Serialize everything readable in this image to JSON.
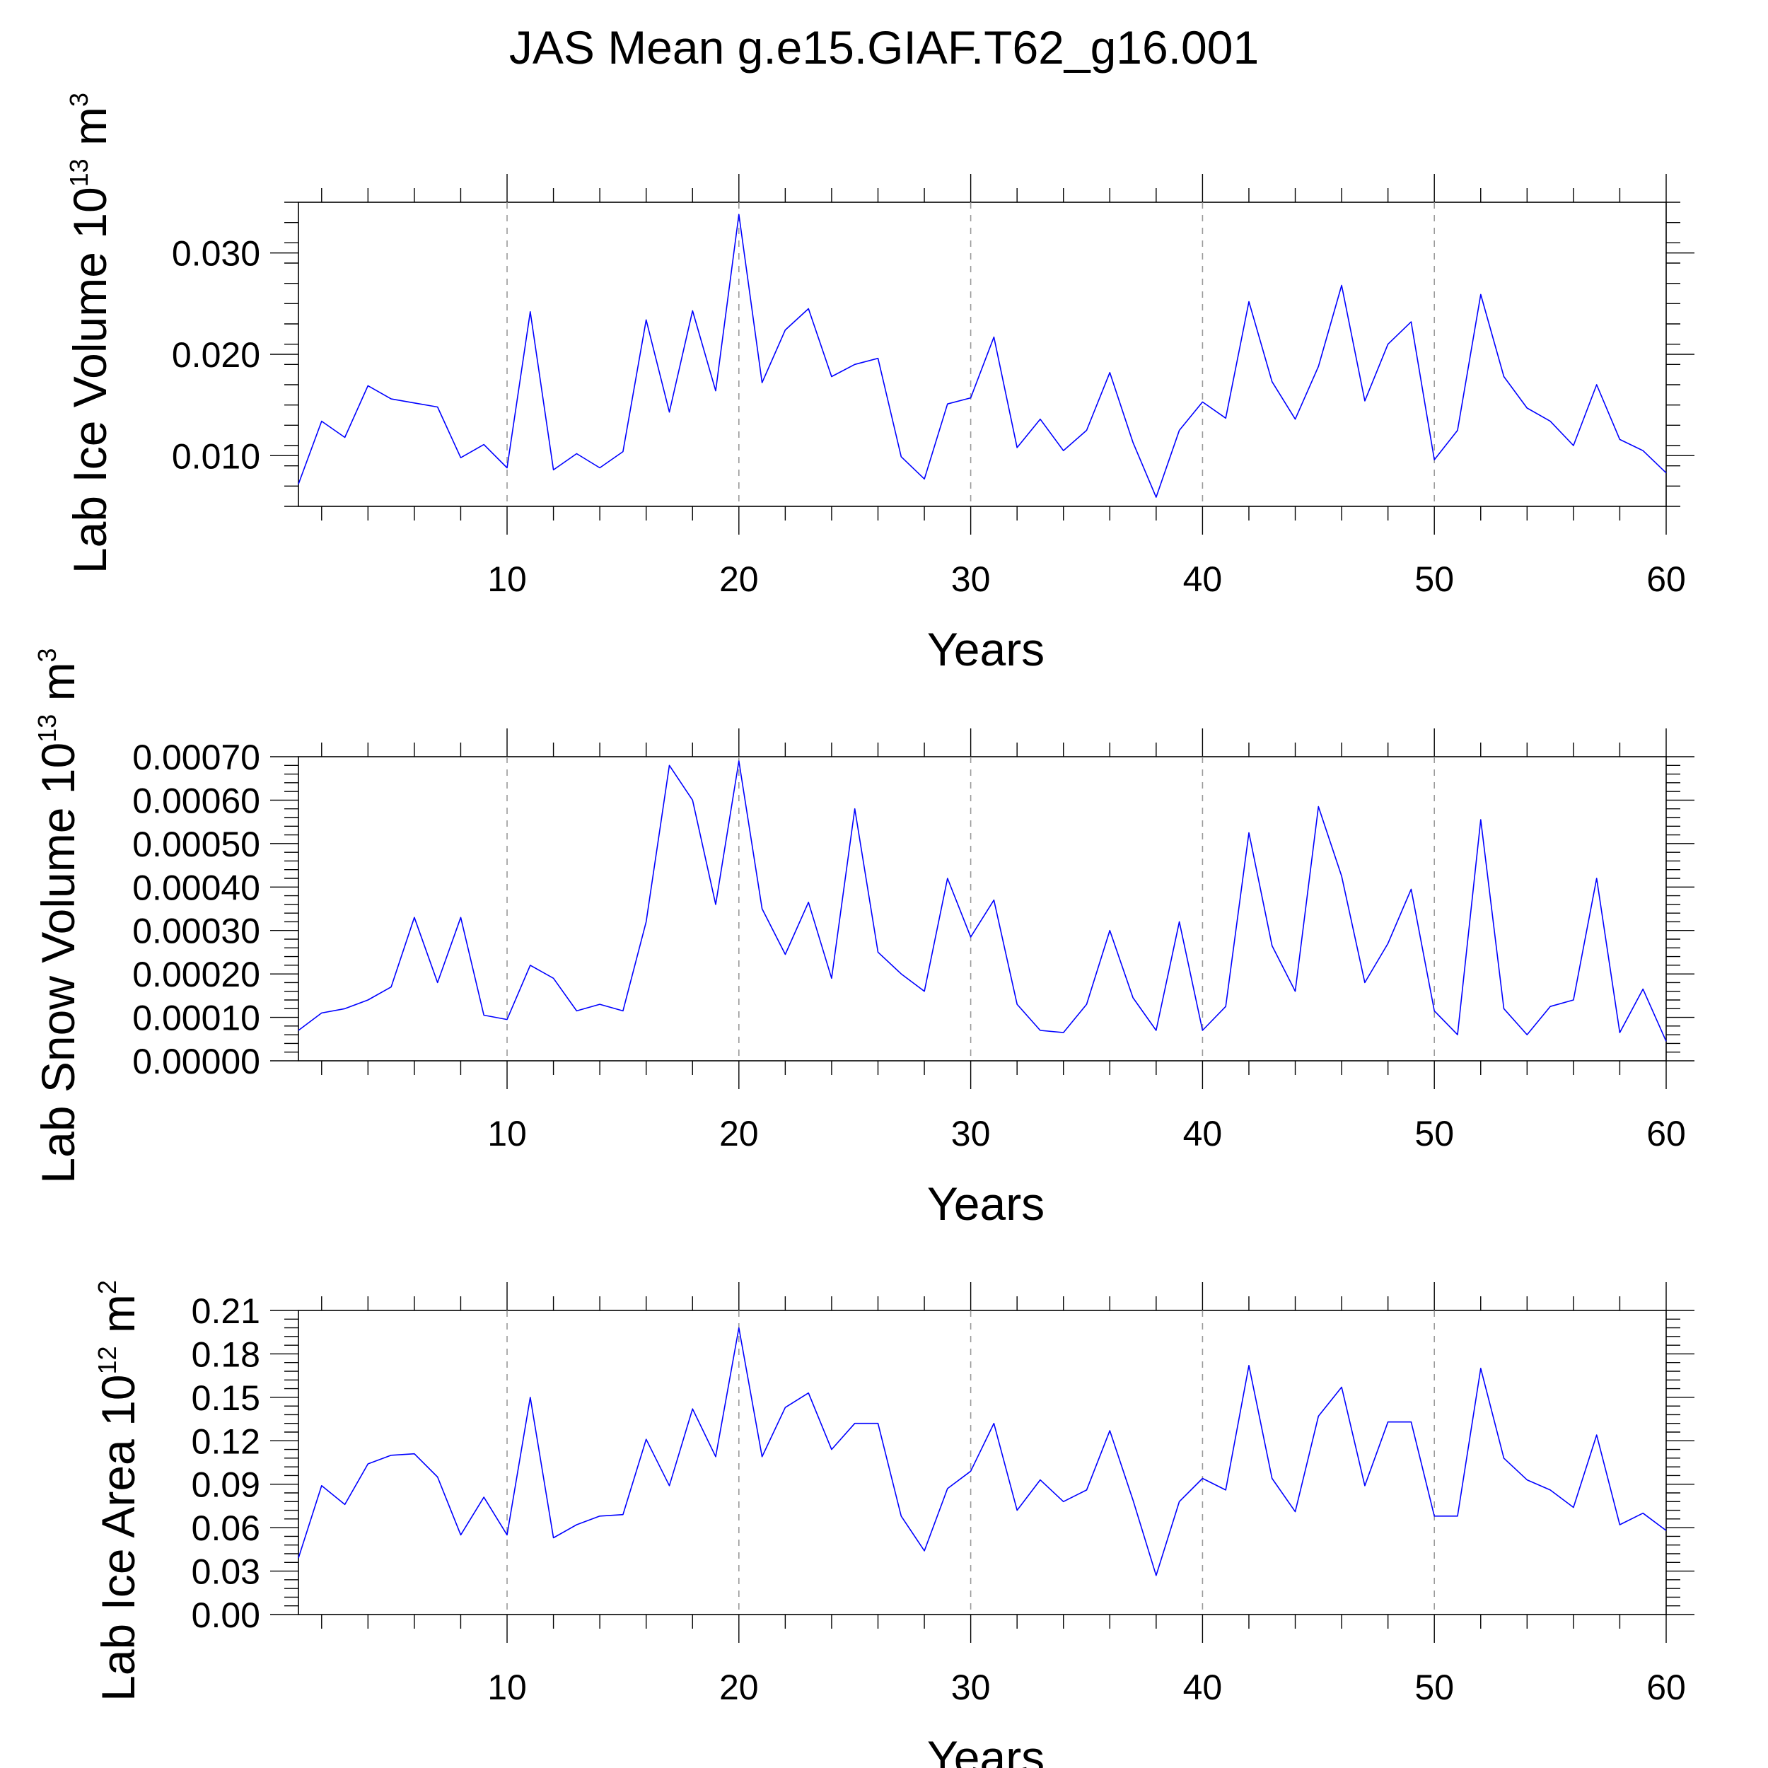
{
  "title": "JAS Mean g.e15.GIAF.T62_g16.001",
  "colors": {
    "series": "#0000ff",
    "grid": "#9a9a9a",
    "axis": "#000000"
  },
  "chart_data": [
    {
      "type": "line",
      "xlabel": "Years",
      "ylabel": {
        "prefix": "Lab Ice Volume 10",
        "exp": "13",
        "unit": " m",
        "unit_exp": "3"
      },
      "xlim": [
        1,
        60
      ],
      "ylim": [
        0.005,
        0.035
      ],
      "xticks": [
        10,
        20,
        30,
        40,
        50,
        60
      ],
      "yticks": [
        {
          "value": 0.01,
          "label": "0.010"
        },
        {
          "value": 0.02,
          "label": "0.020"
        },
        {
          "value": 0.03,
          "label": "0.030"
        }
      ],
      "grid_x": true,
      "series": [
        {
          "name": "Lab Ice Volume",
          "x": [
            1,
            2,
            3,
            4,
            5,
            6,
            7,
            8,
            9,
            10,
            11,
            12,
            13,
            14,
            15,
            16,
            17,
            18,
            19,
            20,
            21,
            22,
            23,
            24,
            25,
            26,
            27,
            28,
            29,
            30,
            31,
            32,
            33,
            34,
            35,
            36,
            37,
            38,
            39,
            40,
            41,
            42,
            43,
            44,
            45,
            46,
            47,
            48,
            49,
            50,
            51,
            52,
            53,
            54,
            55,
            56,
            57,
            58,
            59,
            60
          ],
          "values": [
            0.0072,
            0.0134,
            0.0118,
            0.0169,
            0.0156,
            0.0152,
            0.0148,
            0.0098,
            0.0111,
            0.0088,
            0.0242,
            0.0086,
            0.0102,
            0.0088,
            0.0104,
            0.0234,
            0.0143,
            0.0243,
            0.0164,
            0.0338,
            0.0172,
            0.0224,
            0.0245,
            0.0178,
            0.019,
            0.0196,
            0.0099,
            0.0077,
            0.0151,
            0.0157,
            0.0217,
            0.0108,
            0.0136,
            0.0105,
            0.0125,
            0.0182,
            0.0113,
            0.0059,
            0.0125,
            0.0153,
            0.0137,
            0.0252,
            0.0173,
            0.0136,
            0.0188,
            0.0268,
            0.0154,
            0.021,
            0.0232,
            0.0096,
            0.0125,
            0.0259,
            0.0178,
            0.0147,
            0.0134,
            0.011,
            0.017,
            0.0116,
            0.0105,
            0.0083
          ]
        }
      ]
    },
    {
      "type": "line",
      "xlabel": "Years",
      "ylabel": {
        "prefix": "Lab Snow Volume 10",
        "exp": "13",
        "unit": " m",
        "unit_exp": "3"
      },
      "xlim": [
        1,
        60
      ],
      "ylim": [
        0,
        0.0007
      ],
      "xticks": [
        10,
        20,
        30,
        40,
        50,
        60
      ],
      "yticks": [
        {
          "value": 0,
          "label": "0.00000"
        },
        {
          "value": 0.0001,
          "label": "0.00010"
        },
        {
          "value": 0.0002,
          "label": "0.00020"
        },
        {
          "value": 0.0003,
          "label": "0.00030"
        },
        {
          "value": 0.0004,
          "label": "0.00040"
        },
        {
          "value": 0.0005,
          "label": "0.00050"
        },
        {
          "value": 0.0006,
          "label": "0.00060"
        },
        {
          "value": 0.0007,
          "label": "0.00070"
        }
      ],
      "grid_x": true,
      "series": [
        {
          "name": "Lab Snow Volume",
          "x": [
            1,
            2,
            3,
            4,
            5,
            6,
            7,
            8,
            9,
            10,
            11,
            12,
            13,
            14,
            15,
            16,
            17,
            18,
            19,
            20,
            21,
            22,
            23,
            24,
            25,
            26,
            27,
            28,
            29,
            30,
            31,
            32,
            33,
            34,
            35,
            36,
            37,
            38,
            39,
            40,
            41,
            42,
            43,
            44,
            45,
            46,
            47,
            48,
            49,
            50,
            51,
            52,
            53,
            54,
            55,
            56,
            57,
            58,
            59,
            60
          ],
          "values": [
            7e-05,
            0.00011,
            0.00012,
            0.00014,
            0.00017,
            0.00033,
            0.00018,
            0.00033,
            0.000105,
            9.5e-05,
            0.00022,
            0.00019,
            0.000115,
            0.00013,
            0.000115,
            0.00032,
            0.00068,
            0.0006,
            0.00036,
            0.00069,
            0.00035,
            0.000245,
            0.000365,
            0.00019,
            0.00058,
            0.00025,
            0.0002,
            0.00016,
            0.00042,
            0.000285,
            0.00037,
            0.00013,
            7e-05,
            6.5e-05,
            0.00013,
            0.0003,
            0.000145,
            7e-05,
            0.00032,
            7e-05,
            0.000125,
            0.000525,
            0.000265,
            0.00016,
            0.000585,
            0.000425,
            0.00018,
            0.00027,
            0.000395,
            0.000115,
            6e-05,
            0.000555,
            0.00012,
            6e-05,
            0.000125,
            0.00014,
            0.00042,
            6.5e-05,
            0.000165,
            4.5e-05
          ]
        }
      ]
    },
    {
      "type": "line",
      "xlabel": "Years",
      "ylabel": {
        "prefix": "Lab Ice Area 10",
        "exp": "12",
        "unit": " m",
        "unit_exp": "2"
      },
      "xlim": [
        1,
        60
      ],
      "ylim": [
        0,
        0.21
      ],
      "xticks": [
        10,
        20,
        30,
        40,
        50,
        60
      ],
      "yticks": [
        {
          "value": 0,
          "label": "0.00"
        },
        {
          "value": 0.03,
          "label": "0.03"
        },
        {
          "value": 0.06,
          "label": "0.06"
        },
        {
          "value": 0.09,
          "label": "0.09"
        },
        {
          "value": 0.12,
          "label": "0.12"
        },
        {
          "value": 0.15,
          "label": "0.15"
        },
        {
          "value": 0.18,
          "label": "0.18"
        },
        {
          "value": 0.21,
          "label": "0.21"
        }
      ],
      "grid_x": true,
      "series": [
        {
          "name": "Lab Ice Area",
          "x": [
            1,
            2,
            3,
            4,
            5,
            6,
            7,
            8,
            9,
            10,
            11,
            12,
            13,
            14,
            15,
            16,
            17,
            18,
            19,
            20,
            21,
            22,
            23,
            24,
            25,
            26,
            27,
            28,
            29,
            30,
            31,
            32,
            33,
            34,
            35,
            36,
            37,
            38,
            39,
            40,
            41,
            42,
            43,
            44,
            45,
            46,
            47,
            48,
            49,
            50,
            51,
            52,
            53,
            54,
            55,
            56,
            57,
            58,
            59,
            60
          ],
          "values": [
            0.039,
            0.089,
            0.076,
            0.104,
            0.11,
            0.111,
            0.095,
            0.055,
            0.081,
            0.055,
            0.15,
            0.053,
            0.062,
            0.068,
            0.069,
            0.121,
            0.089,
            0.142,
            0.109,
            0.198,
            0.109,
            0.143,
            0.153,
            0.114,
            0.132,
            0.132,
            0.068,
            0.044,
            0.087,
            0.099,
            0.132,
            0.072,
            0.093,
            0.078,
            0.086,
            0.127,
            0.079,
            0.027,
            0.078,
            0.094,
            0.086,
            0.172,
            0.094,
            0.071,
            0.137,
            0.157,
            0.089,
            0.133,
            0.133,
            0.068,
            0.068,
            0.17,
            0.108,
            0.093,
            0.086,
            0.074,
            0.124,
            0.062,
            0.07,
            0.058
          ]
        }
      ]
    }
  ]
}
